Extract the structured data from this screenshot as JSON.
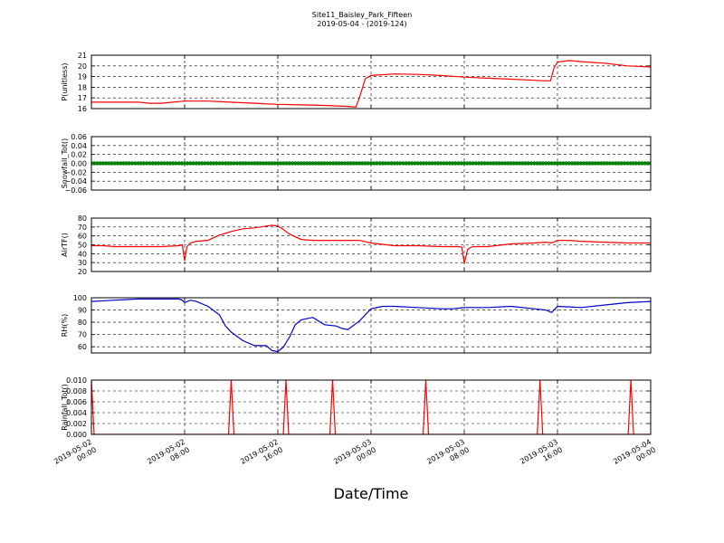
{
  "title": "Site11_Baisley_Park_Fifteen",
  "subtitle": "2019-05-04 - (2019-124)",
  "xlabel": "Date/Time",
  "x_ticks": [
    "2019-05-02\n00:00",
    "2019-05-02\n08:00",
    "2019-05-02\n16:00",
    "2019-05-03\n00:00",
    "2019-05-03\n08:00",
    "2019-05-03\n16:00",
    "2019-05-04\n00:00"
  ],
  "chart_data": [
    {
      "type": "line",
      "ylabel": "P(unitless)",
      "ylim": [
        16,
        21
      ],
      "y_ticks": [
        "16",
        "17",
        "18",
        "19",
        "20",
        "21"
      ],
      "grid": true,
      "color": "#ff0000",
      "x_hours": [
        0,
        2,
        4,
        5,
        6,
        7,
        8,
        10,
        12,
        14,
        16,
        18,
        20,
        22,
        22.7,
        23,
        23.5,
        24,
        26,
        28,
        30,
        32,
        34,
        36,
        38,
        39,
        39.4,
        39.7,
        40,
        41,
        42,
        44,
        46,
        48
      ],
      "values": [
        16.6,
        16.6,
        16.6,
        16.5,
        16.5,
        16.6,
        16.7,
        16.7,
        16.6,
        16.5,
        16.4,
        16.35,
        16.3,
        16.2,
        16.15,
        17.0,
        18.8,
        19.1,
        19.25,
        19.2,
        19.1,
        18.95,
        18.85,
        18.75,
        18.65,
        18.6,
        18.6,
        19.8,
        20.35,
        20.5,
        20.4,
        20.25,
        20.0,
        19.9
      ]
    },
    {
      "type": "scatter",
      "ylabel": "Snowfall_Tot()",
      "ylim": [
        -0.06,
        0.06
      ],
      "y_ticks": [
        "−0.06",
        "−0.04",
        "−0.02",
        "0.00",
        "0.02",
        "0.04",
        "0.06"
      ],
      "grid": true,
      "color": "#008000",
      "value_all_points": 0.0,
      "interval_minutes": 15
    },
    {
      "type": "line",
      "ylabel": "AirTF()",
      "ylim": [
        20,
        80
      ],
      "y_ticks": [
        "20",
        "30",
        "40",
        "50",
        "60",
        "70",
        "80"
      ],
      "grid": true,
      "color": "#ff0000",
      "x_hours": [
        0,
        1,
        2,
        4,
        6,
        7.5,
        7.8,
        8.0,
        8.2,
        8.5,
        9,
        10,
        10.5,
        11,
        12,
        13,
        14,
        15,
        15.5,
        16,
        16.5,
        17,
        18,
        19,
        20,
        21,
        22,
        23,
        24,
        26,
        28,
        30,
        31.6,
        31.8,
        32.0,
        32.3,
        32.7,
        34,
        36,
        38,
        39,
        39.5,
        40,
        41,
        42,
        44,
        46,
        48
      ],
      "values": [
        49,
        49,
        48,
        48,
        48,
        49,
        50,
        32,
        48,
        52,
        54,
        55,
        58,
        61,
        65,
        68,
        69,
        71,
        72,
        71,
        67,
        62,
        56,
        55,
        55,
        55,
        55,
        55,
        52,
        49,
        49,
        48,
        48,
        47,
        29,
        45,
        48,
        48,
        51,
        52,
        53,
        52,
        55,
        55,
        54,
        53,
        52,
        52
      ]
    },
    {
      "type": "line",
      "ylabel": "RH(%)",
      "ylim": [
        55,
        100
      ],
      "y_ticks": [
        "60",
        "70",
        "80",
        "90",
        "100"
      ],
      "grid": true,
      "color": "#0000cc",
      "x_hours": [
        0,
        2,
        4,
        6,
        7.5,
        7.8,
        8.0,
        8.5,
        9,
        10,
        11,
        11.5,
        12,
        13,
        14,
        15,
        15.5,
        16,
        16.5,
        17,
        17.5,
        18,
        19,
        20,
        21,
        21.5,
        22,
        23,
        24,
        25,
        26,
        28,
        30,
        31,
        32,
        34,
        36,
        38,
        39,
        39.5,
        40,
        42,
        44,
        46,
        48
      ],
      "values": [
        97,
        98,
        99,
        99,
        99,
        98,
        96,
        98,
        97,
        93,
        86,
        77,
        72,
        65,
        61,
        61,
        57,
        56,
        60,
        68,
        78,
        82,
        84,
        78,
        77,
        75,
        74,
        81,
        91,
        93,
        93,
        92,
        91,
        91,
        92,
        92,
        93,
        91,
        90,
        88,
        93,
        92,
        94,
        96,
        97
      ]
    },
    {
      "type": "line",
      "ylabel": "Rainfall_Tot()",
      "ylim": [
        0,
        0.01
      ],
      "y_ticks": [
        "0.000",
        "0.002",
        "0.004",
        "0.006",
        "0.008",
        "0.010"
      ],
      "grid": true,
      "color": "#ff0000",
      "spikes_x_hours": [
        0,
        12,
        16.7,
        20.7,
        28.7,
        38.5,
        46.3
      ],
      "spike_value": 0.01
    }
  ]
}
